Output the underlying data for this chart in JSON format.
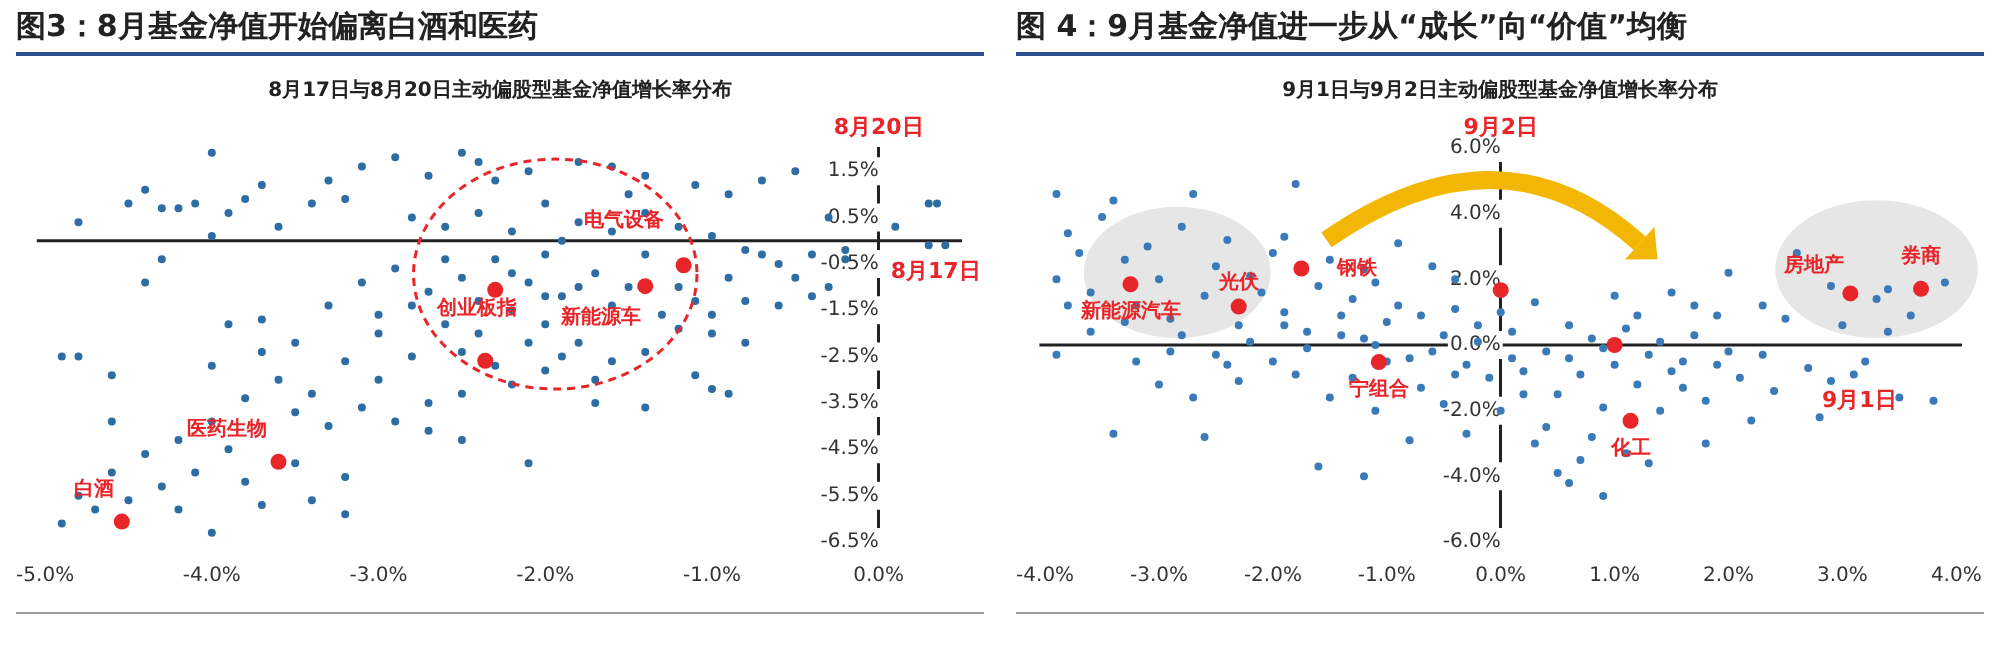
{
  "chart_data": [
    {
      "type": "scatter",
      "title": "图3：8月基金净值开始偏离白酒和医药",
      "subtitle": "8月17日与8月20日主动偏股型基金净值增长率分布",
      "xlabel": "8月17日",
      "ylabel": "8月20日",
      "marker": "circle",
      "xlim": [
        -5.05,
        0.5
      ],
      "ylim": [
        -6.5,
        2.0
      ],
      "xticks": [
        {
          "value": -5,
          "label": "-5.0%"
        },
        {
          "value": -4,
          "label": "-4.0%"
        },
        {
          "value": -3,
          "label": "-3.0%"
        },
        {
          "value": -2,
          "label": "-2.0%"
        },
        {
          "value": -1,
          "label": "-1.0%"
        },
        {
          "value": 0,
          "label": "0.0%"
        }
      ],
      "yticks": [
        {
          "value": 1.5,
          "label": "1.5%"
        },
        {
          "value": 0.5,
          "label": "0.5%"
        },
        {
          "value": -0.5,
          "label": "-0.5%"
        },
        {
          "value": -1.5,
          "label": "-1.5%"
        },
        {
          "value": -2.5,
          "label": "-2.5%"
        },
        {
          "value": -3.5,
          "label": "-3.5%"
        },
        {
          "value": -4.5,
          "label": "-4.5%"
        },
        {
          "value": -5.5,
          "label": "-5.5%"
        },
        {
          "value": -6.5,
          "label": "-6.5%"
        }
      ],
      "series": [
        {
          "type": "scatter",
          "color": "#2e6da4",
          "x": [
            -4.0,
            -4.8,
            -4.5,
            -4.4,
            -4.3,
            -4.2,
            -4.1,
            -3.9,
            -3.7,
            -3.8,
            -3.6,
            -4.0,
            -4.3,
            -4.4,
            -3.3,
            -3.1,
            -2.9,
            -2.5,
            -2.4,
            -3.2,
            -3.4,
            -2.7,
            -2.3,
            -2.1,
            -1.8,
            -1.6,
            -1.4,
            -1.5,
            -1.1,
            -0.9,
            -0.5,
            -0.7,
            -0.3,
            -2.8,
            -2.6,
            -2.4,
            -2.2,
            -2.0,
            -1.8,
            -1.6,
            -1.4,
            -1.2,
            -1.0,
            -0.8,
            -0.6,
            -0.4,
            -0.2,
            -0.9,
            -1.1,
            -1.3,
            -1.5,
            -1.7,
            -1.9,
            -2.1,
            -2.3,
            -2.5,
            -2.7,
            -2.9,
            -3.1,
            -3.3,
            -2.6,
            -2.4,
            -2.2,
            -2.0,
            -1.8,
            -1.6,
            -1.4,
            -1.2,
            -1.0,
            -0.8,
            -1.1,
            -1.0,
            -1.7,
            -2.0,
            -2.2,
            -2.5,
            -2.8,
            -3.0,
            -3.2,
            -3.5,
            -3.7,
            -3.6,
            -3.4,
            -3.1,
            -2.9,
            -2.7,
            -2.5,
            -2.1,
            -3.3,
            -3.5,
            -3.8,
            -4.0,
            -3.9,
            -4.2,
            -4.1,
            -4.4,
            -4.3,
            -4.6,
            -4.8,
            -4.9,
            -4.7,
            -4.5,
            -4.2,
            -4.0,
            -3.7,
            -3.4,
            -3.2,
            -3.8,
            -3.5,
            -3.2,
            -4.9,
            -4.8,
            -4.6,
            -4.6,
            -3.9,
            -3.7,
            -4.0,
            -2.3,
            -1.9,
            -1.7,
            -1.4,
            -0.8,
            -0.9,
            -0.6,
            -0.4,
            -0.3,
            -0.5,
            -0.7,
            -0.2,
            0.1,
            0.3,
            0.35,
            0.3,
            0.4,
            -1.0,
            -1.2,
            -1.4,
            -1.6,
            -1.8,
            -2.0,
            -2.2,
            -2.4,
            -2.6,
            -2.8,
            -3.0,
            -2.0,
            -1.9,
            -2.5,
            -2.1,
            -3.0,
            -2.7
          ],
          "values": [
            1.9,
            0.4,
            0.8,
            1.1,
            0.7,
            0.7,
            0.8,
            0.6,
            1.2,
            0.9,
            0.3,
            0.1,
            -0.4,
            -0.9,
            1.3,
            1.6,
            1.8,
            1.9,
            1.7,
            0.9,
            0.8,
            1.4,
            1.3,
            1.5,
            1.7,
            1.6,
            1.4,
            1.0,
            1.2,
            1.0,
            1.5,
            1.3,
            0.5,
            0.5,
            0.3,
            0.6,
            0.2,
            0.8,
            0.4,
            0.2,
            0.6,
            0.3,
            0.1,
            -0.2,
            -0.5,
            -0.3,
            -0.4,
            -0.8,
            -1.3,
            -1.6,
            -1.0,
            -0.7,
            -1.2,
            -0.9,
            -0.4,
            -0.8,
            -1.1,
            -0.6,
            -0.9,
            -1.4,
            -1.8,
            -2.0,
            -1.5,
            -1.8,
            -2.2,
            -2.6,
            -2.4,
            -1.9,
            -2.0,
            -1.3,
            -2.9,
            -3.2,
            -3.5,
            -2.8,
            -3.1,
            -3.3,
            -2.5,
            -2.0,
            -2.6,
            -2.2,
            -1.7,
            -3.0,
            -3.3,
            -3.6,
            -3.9,
            -4.1,
            -4.3,
            -4.8,
            -4.0,
            -3.7,
            -3.4,
            -3.9,
            -4.5,
            -4.3,
            -5.0,
            -4.6,
            -5.3,
            -5.0,
            -5.5,
            -6.1,
            -5.8,
            -5.6,
            -5.8,
            -6.3,
            -5.7,
            -5.6,
            -5.9,
            -5.2,
            -4.8,
            -5.1,
            -2.5,
            -2.5,
            -2.9,
            -3.9,
            -1.8,
            -2.4,
            -2.7,
            -2.7,
            -2.5,
            -3.0,
            -3.6,
            -2.2,
            -3.3,
            -1.4,
            -1.2,
            -1.0,
            -0.8,
            -0.3,
            -0.2,
            0.3,
            0.8,
            0.8,
            -0.1,
            -0.1,
            -1.6,
            -1.0,
            -0.3,
            -1.4,
            -1.0,
            -0.3,
            -0.7,
            -1.3,
            -0.4,
            -1.4,
            -1.6,
            -1.2,
            0.0,
            -2.4,
            -2.2,
            -3.0,
            -3.5
          ]
        },
        {
          "type": "scatter",
          "color": "#e8262a",
          "x": [
            -2.3,
            -1.17,
            -1.4,
            -2.36,
            -3.6,
            -4.54
          ],
          "values": [
            -1.06,
            -0.53,
            -0.98,
            -2.59,
            -4.77,
            -6.06
          ]
        }
      ],
      "annotations": [
        {
          "text": "电气设备",
          "x": -1.17,
          "y": -0.53
        },
        {
          "text": "新能源车",
          "x": -1.4,
          "y": -0.98
        },
        {
          "text": "创业板指",
          "x": -2.36,
          "y": -2.59
        },
        {
          "text": "医药生物",
          "x": -3.6,
          "y": -4.77
        },
        {
          "text": "白酒",
          "x": -4.54,
          "y": -6.06
        }
      ]
    },
    {
      "type": "scatter",
      "title": "图 4：9月基金净值进一步从“成长”向“价值”均衡",
      "subtitle": "9月1日与9月2日主动偏股型基金净值增长率分布",
      "xlabel": "9月1日",
      "ylabel": "9月2日",
      "marker": "circle",
      "xlim": [
        -4.05,
        4.05
      ],
      "ylim": [
        -6,
        6
      ],
      "xticks": [
        {
          "value": -4,
          "label": "-4.0%"
        },
        {
          "value": -3,
          "label": "-3.0%"
        },
        {
          "value": -2,
          "label": "-2.0%"
        },
        {
          "value": -1,
          "label": "-1.0%"
        },
        {
          "value": 0,
          "label": "0.0%"
        },
        {
          "value": 1,
          "label": "1.0%"
        },
        {
          "value": 2,
          "label": "2.0%"
        },
        {
          "value": 3,
          "label": "3.0%"
        },
        {
          "value": 4,
          "label": "4.0%"
        }
      ],
      "yticks": [
        {
          "value": -6,
          "label": "-6.0%"
        },
        {
          "value": -4,
          "label": "-4.0%"
        },
        {
          "value": -2,
          "label": "-2.0%"
        },
        {
          "value": 0,
          "label": "0.0%"
        },
        {
          "value": 2,
          "label": "2.0%"
        },
        {
          "value": 4,
          "label": "4.0%"
        },
        {
          "value": 6,
          "label": "6.0%"
        }
      ],
      "series": [
        {
          "type": "scatter",
          "color": "#3a7ab8",
          "x": [
            -3.9,
            -3.8,
            -3.9,
            -3.8,
            -3.7,
            -3.6,
            -3.5,
            -3.4,
            -3.3,
            -3.2,
            -3.1,
            -3.0,
            -2.9,
            -2.8,
            -2.7,
            -2.6,
            -2.5,
            -2.4,
            -2.3,
            -2.2,
            -2.1,
            -2.0,
            -1.9,
            -1.8,
            -1.9,
            -1.7,
            -1.6,
            -1.5,
            -1.4,
            -1.3,
            -1.2,
            -1.1,
            -1.0,
            -0.9,
            -0.8,
            -0.7,
            -0.6,
            -0.5,
            -0.4,
            -0.3,
            -0.2,
            -0.1,
            0.1,
            0.2,
            0.3,
            0.4,
            0.5,
            0.6,
            0.7,
            0.8,
            0.9,
            1.0,
            1.1,
            1.2,
            1.3,
            1.4,
            1.5,
            1.6,
            1.7,
            1.8,
            1.9,
            2.0,
            2.1,
            2.2,
            2.3,
            2.4,
            2.5,
            2.6,
            2.7,
            2.8,
            2.9,
            3.0,
            3.2,
            3.4,
            3.5,
            3.1,
            2.3,
            1.8,
            1.1,
            0.5,
            0.6,
            0.9,
            0.3,
            -0.3,
            -0.8,
            -1.1,
            -1.3,
            -1.5,
            -1.8,
            -2.0,
            -2.3,
            -2.5,
            -2.7,
            -2.9,
            -3.2,
            -3.4,
            -3.6,
            -3.9,
            -2.6,
            -1.6,
            -1.2,
            -0.5,
            0.0,
            0.2,
            0.4,
            0.8,
            1.3,
            0.7,
            -0.7,
            -0.4,
            0.0,
            0.1,
            -0.2,
            0.6,
            1.2,
            1.5,
            1.9,
            -1.0,
            -1.4,
            -1.7,
            -2.2,
            -2.8,
            -3.3,
            -3.0,
            -2.4,
            -1.9,
            -1.1,
            -0.6,
            0.9,
            1.4,
            1.6,
            2.0,
            3.8,
            3.6,
            3.3,
            2.9,
            3.9,
            3.4,
            -0.9,
            -1.2,
            -0.4,
            1.0,
            1.7
          ],
          "values": [
            4.6,
            3.4,
            2.0,
            1.2,
            2.8,
            1.6,
            3.9,
            4.4,
            2.6,
            1.2,
            3.0,
            2.0,
            0.8,
            3.6,
            4.6,
            1.5,
            2.4,
            3.2,
            0.6,
            2.1,
            1.6,
            2.8,
            1.0,
            4.9,
            3.3,
            0.4,
            1.8,
            2.6,
            0.9,
            1.4,
            0.2,
            1.9,
            0.7,
            1.2,
            -0.4,
            0.9,
            2.4,
            0.3,
            1.1,
            -0.6,
            0.6,
            -1.0,
            0.4,
            -0.8,
            1.3,
            -0.2,
            -1.5,
            0.6,
            -0.9,
            0.2,
            -1.9,
            -0.6,
            0.5,
            -1.2,
            -0.3,
            -2.0,
            -0.8,
            -1.3,
            0.3,
            -1.7,
            -0.6,
            2.2,
            -1.0,
            -2.3,
            -0.3,
            -1.4,
            0.8,
            2.8,
            -0.7,
            -2.2,
            -1.1,
            0.6,
            -0.5,
            0.4,
            -1.6,
            -0.9,
            1.2,
            -3.0,
            -3.3,
            -3.9,
            -4.2,
            -4.6,
            -3.0,
            -2.7,
            -2.9,
            -2.0,
            -1.0,
            -1.6,
            -0.9,
            -0.5,
            -1.1,
            -0.3,
            -1.6,
            -0.2,
            -0.5,
            -2.7,
            0.4,
            -0.3,
            -2.8,
            -3.7,
            -4.0,
            -1.8,
            -2.0,
            -1.5,
            -2.5,
            -2.8,
            -3.6,
            -3.5,
            -1.3,
            -0.9,
            1.0,
            -0.4,
            0.1,
            -0.4,
            0.9,
            1.6,
            0.9,
            -0.5,
            0.3,
            -0.1,
            0.1,
            0.3,
            0.7,
            -1.2,
            -0.6,
            0.6,
            0.0,
            -0.2,
            -0.1,
            0.1,
            -0.5,
            -0.2,
            -1.7,
            0.9,
            1.4,
            1.8,
            1.9,
            1.7,
            3.1,
            2.3,
            2.0,
            1.5,
            1.2
          ]
        },
        {
          "type": "scatter",
          "color": "#e8262a",
          "x": [
            -1.75,
            -2.3,
            -3.25,
            0.0,
            -1.07,
            1.0,
            1.14,
            3.07,
            3.69
          ],
          "values": [
            2.33,
            1.17,
            1.85,
            1.67,
            -0.52,
            0.0,
            -2.31,
            1.57,
            1.71
          ]
        }
      ],
      "annotations": [
        {
          "text": "钢铁",
          "x": -1.75,
          "y": 2.33
        },
        {
          "text": "光伏",
          "x": -2.3,
          "y": 1.17
        },
        {
          "text": "新能源汽车",
          "x": -3.25,
          "y": 1.85
        },
        {
          "text": "宁组合",
          "x": -1.07,
          "y": -0.52
        },
        {
          "text": "化工",
          "x": 1.14,
          "y": -2.31
        },
        {
          "text": "房地产",
          "x": 3.07,
          "y": 1.57
        },
        {
          "text": "券商",
          "x": 3.69,
          "y": 1.71
        }
      ]
    }
  ]
}
